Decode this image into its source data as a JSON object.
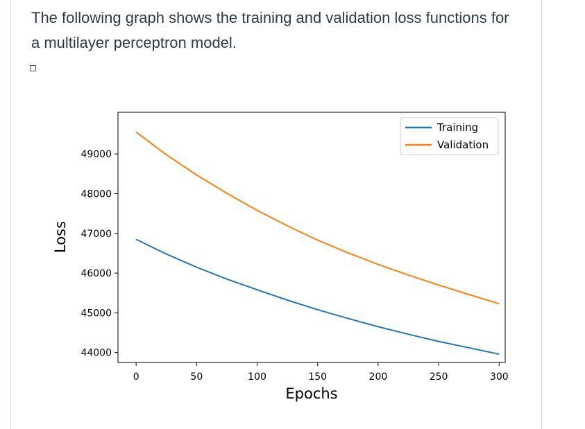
{
  "question": {
    "text": "The following graph shows the training and validation loss functions for a multilayer perceptron model."
  },
  "chart_data": {
    "type": "line",
    "xlabel": "Epochs",
    "ylabel": "Loss",
    "xlim": [
      -15,
      305
    ],
    "ylim": [
      43750,
      50050
    ],
    "xticks": [
      0,
      50,
      100,
      150,
      200,
      250,
      300
    ],
    "yticks": [
      44000,
      45000,
      46000,
      47000,
      48000,
      49000
    ],
    "legend_position": "top-right",
    "grid": false,
    "series": [
      {
        "name": "Training",
        "color": "#1f77b4",
        "x": [
          0,
          25,
          50,
          75,
          100,
          125,
          150,
          175,
          200,
          225,
          250,
          275,
          300
        ],
        "y": [
          46850,
          46480,
          46150,
          45850,
          45580,
          45320,
          45080,
          44860,
          44650,
          44460,
          44280,
          44120,
          43960
        ]
      },
      {
        "name": "Validation",
        "color": "#ff7f0e",
        "x": [
          0,
          25,
          50,
          75,
          100,
          125,
          150,
          175,
          200,
          225,
          250,
          275,
          300
        ],
        "y": [
          49550,
          48980,
          48470,
          48010,
          47580,
          47190,
          46830,
          46510,
          46220,
          45950,
          45700,
          45460,
          45230
        ]
      }
    ]
  }
}
